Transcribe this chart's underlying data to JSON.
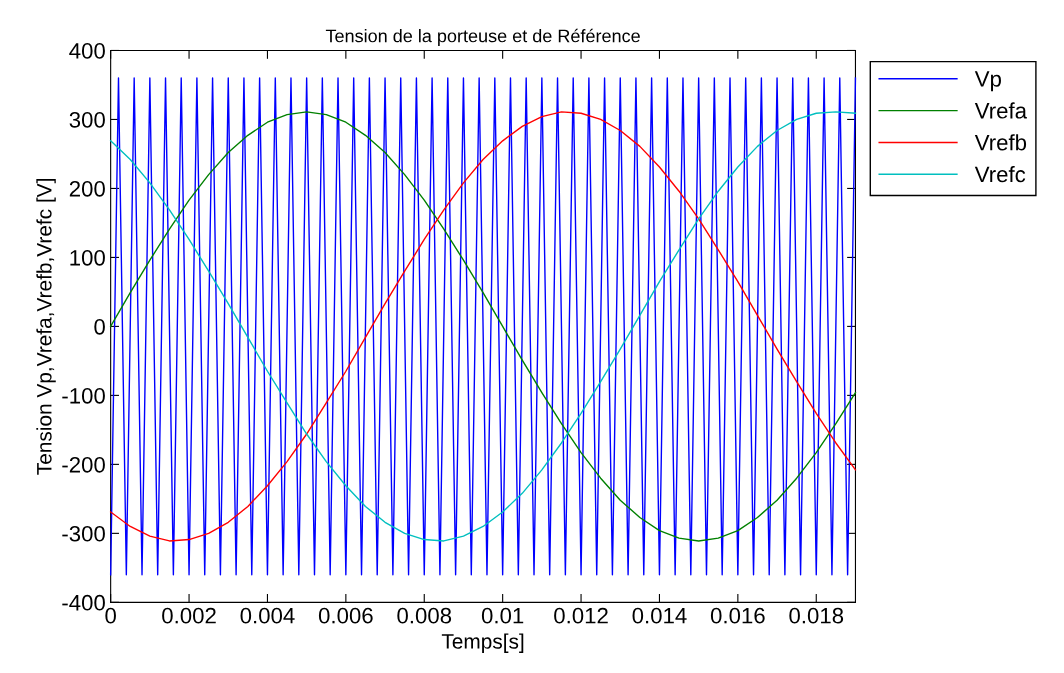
{
  "chart_data": {
    "type": "line",
    "title": "Tension de la porteuse et de Référence",
    "xlabel": "Temps[s]",
    "ylabel": "Tension Vp,Vrefa,Vrefb,Vrefc [V]",
    "xlim": [
      0,
      0.019
    ],
    "xticks": [
      0,
      0.002,
      0.004,
      0.006,
      0.008,
      0.01,
      0.012,
      0.014,
      0.016,
      0.018
    ],
    "ylim": [
      -400,
      400
    ],
    "yticks": [
      -400,
      -300,
      -200,
      -100,
      0,
      100,
      200,
      300,
      400
    ],
    "grid": false,
    "legend": "top right",
    "marker": "none",
    "line_style": "solid",
    "x": [
      0,
      0.0005,
      0.001,
      0.0015,
      0.002,
      0.0025,
      0.003,
      0.0035,
      0.004,
      0.0045,
      0.005,
      0.0055,
      0.006,
      0.0065,
      0.007,
      0.0075,
      0.008,
      0.0085,
      0.009,
      0.0095,
      0.01,
      0.0105,
      0.011,
      0.0115,
      0.012,
      0.0125,
      0.013,
      0.0135,
      0.014,
      0.0145,
      0.015,
      0.0155,
      0.016,
      0.0165,
      0.017,
      0.0175,
      0.018,
      0.0185,
      0.019
    ],
    "series": [
      {
        "name": "Vp",
        "color": "#0000ff",
        "x": [
          0,
          0.0002,
          0.0004,
          0.0006,
          0.0008,
          0.001,
          0.0012,
          0.0014,
          0.0016,
          0.0018,
          0.002,
          0.0022,
          0.0024,
          0.0026,
          0.0028,
          0.003,
          0.0032,
          0.0034,
          0.0036,
          0.0038,
          0.004,
          0.0042,
          0.0044,
          0.0046,
          0.0048,
          0.005,
          0.0052,
          0.0054,
          0.0056,
          0.0058,
          0.006,
          0.0062,
          0.0064,
          0.0066,
          0.0068,
          0.007,
          0.0072,
          0.0074,
          0.0076,
          0.0078,
          0.008,
          0.0082,
          0.0084,
          0.0086,
          0.0088,
          0.009,
          0.0092,
          0.0094,
          0.0096,
          0.0098,
          0.01,
          0.0102,
          0.0104,
          0.0106,
          0.0108,
          0.011,
          0.0112,
          0.0114,
          0.0116,
          0.0118,
          0.012,
          0.0122,
          0.0124,
          0.0126,
          0.0128,
          0.013,
          0.0132,
          0.0134,
          0.0136,
          0.0138,
          0.014,
          0.0142,
          0.0144,
          0.0146,
          0.0148,
          0.015,
          0.0152,
          0.0154,
          0.0156,
          0.0158,
          0.016,
          0.0162,
          0.0164,
          0.0166,
          0.0168,
          0.017,
          0.0172,
          0.0174,
          0.0176,
          0.0178,
          0.018,
          0.0182,
          0.0184,
          0.0186,
          0.0188,
          0.019
        ],
        "values": [
          -360,
          360,
          -360,
          360,
          -360,
          360,
          -360,
          360,
          -360,
          360,
          -360,
          360,
          -360,
          360,
          -360,
          360,
          -360,
          360,
          -360,
          360,
          -360,
          360,
          -360,
          360,
          -360,
          360,
          -360,
          360,
          -360,
          360,
          -360,
          360,
          -360,
          360,
          -360,
          360,
          -360,
          360,
          -360,
          360,
          -360,
          360,
          -360,
          360,
          -360,
          360,
          -360,
          360,
          -360,
          360,
          -360,
          360,
          -360,
          360,
          -360,
          360,
          -360,
          360,
          -360,
          360,
          -360,
          360,
          -360,
          360,
          -360,
          360,
          -360,
          360,
          -360,
          360,
          -360,
          360,
          -360,
          360,
          -360,
          360,
          -360,
          360,
          -360,
          360,
          -360,
          360,
          -360,
          360,
          -360,
          360,
          -360,
          360,
          -360,
          360,
          -360,
          360,
          -360,
          360,
          -360,
          360
        ]
      },
      {
        "name": "Vrefa",
        "color": "#008000",
        "values": [
          0,
          49,
          96,
          141,
          183,
          220,
          252,
          277,
          296,
          307,
          311,
          307,
          296,
          277,
          252,
          220,
          183,
          141,
          96,
          49,
          0,
          -49,
          -96,
          -141,
          -183,
          -220,
          -252,
          -277,
          -296,
          -307,
          -311,
          -307,
          -296,
          -277,
          -252,
          -220,
          -183,
          -141,
          -96
        ]
      },
      {
        "name": "Vrefb",
        "color": "#ff0000",
        "values": [
          -269,
          -290,
          -304,
          -311,
          -309,
          -300,
          -284,
          -261,
          -231,
          -196,
          -156,
          -111,
          -65,
          -16,
          33,
          80,
          126,
          169,
          208,
          242,
          269,
          290,
          304,
          311,
          309,
          300,
          284,
          261,
          231,
          196,
          156,
          111,
          65,
          16,
          -33,
          -80,
          -126,
          -169,
          -208
        ]
      },
      {
        "name": "Vrefc",
        "color": "#00bfbf",
        "values": [
          269,
          242,
          208,
          169,
          126,
          80,
          33,
          -16,
          -65,
          -111,
          -156,
          -196,
          -231,
          -261,
          -284,
          -300,
          -309,
          -311,
          -304,
          -290,
          -269,
          -242,
          -208,
          -169,
          -126,
          -80,
          -33,
          16,
          65,
          111,
          156,
          196,
          231,
          261,
          284,
          300,
          309,
          311,
          309
        ]
      }
    ]
  }
}
